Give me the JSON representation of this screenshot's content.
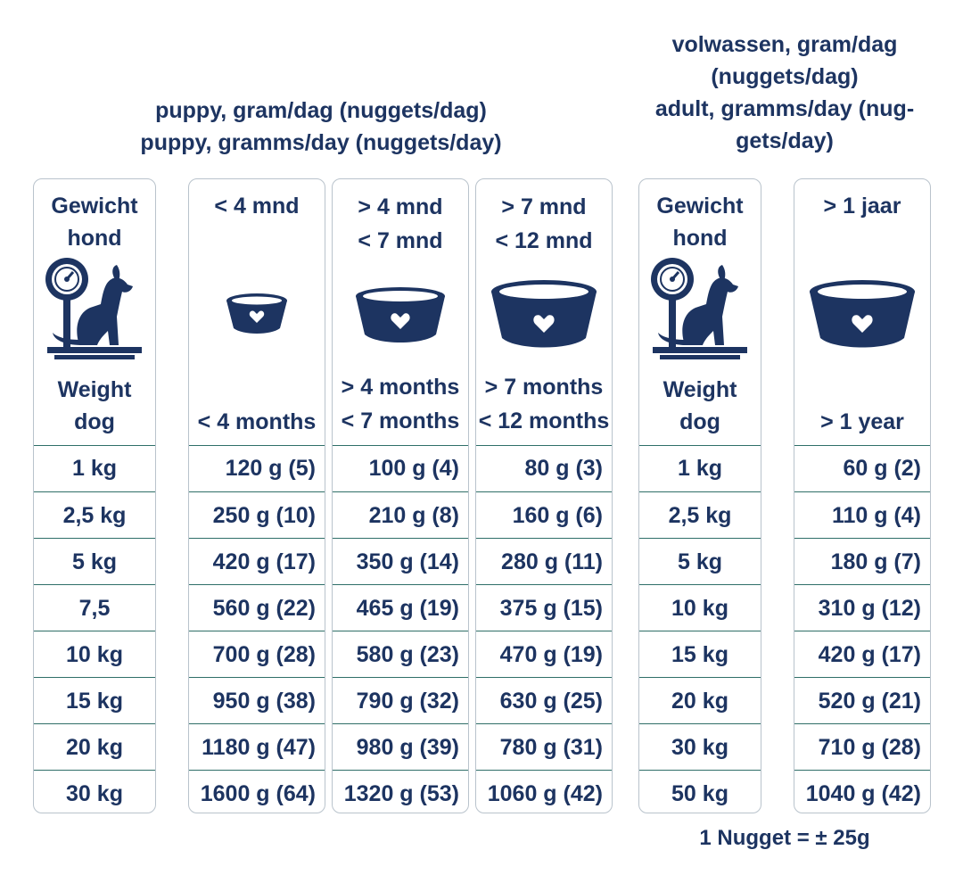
{
  "headings": {
    "puppy_line1": "puppy, gram/dag (nuggets/dag)",
    "puppy_line2": "puppy, gramms/day (nuggets/day)",
    "adult_line1": "volwassen, gram/dag",
    "adult_line2": "(nuggets/dag)",
    "adult_line3": "adult, gramms/day (nug-",
    "adult_line4": "gets/day)"
  },
  "puppy_weight": {
    "top1": "Gewicht",
    "top2": "hond",
    "bot1": "Weight",
    "bot2": "dog",
    "icon": "scale-dog-icon",
    "rows": [
      "1 kg",
      "2,5 kg",
      "5 kg",
      "7,5",
      "10 kg",
      "15 kg",
      "20 kg",
      "30 kg"
    ]
  },
  "puppy_lt4": {
    "top1": "< 4 mnd",
    "bot1": "< 4 months",
    "icon": "small-bowl-icon",
    "rows": [
      "120 g (5)",
      "250 g (10)",
      "420 g (17)",
      "560 g (22)",
      "700 g (28)",
      "950 g (38)",
      "1180 g (47)",
      "1600 g (64)"
    ]
  },
  "puppy_4to7": {
    "top1": "> 4 mnd",
    "top2": "< 7 mnd",
    "bot1": "> 4 months",
    "bot2": "< 7 months",
    "icon": "medium-bowl-icon",
    "rows": [
      "100 g (4)",
      "210 g (8)",
      "350 g (14)",
      "465 g (19)",
      "580 g (23)",
      "790 g (32)",
      "980 g (39)",
      "1320 g (53)"
    ]
  },
  "puppy_7to12": {
    "top1": "> 7 mnd",
    "top2": "< 12 mnd",
    "bot1": "> 7 months",
    "bot2": "< 12 months",
    "icon": "large-bowl-icon",
    "rows": [
      "80 g (3)",
      "160 g (6)",
      "280 g (11)",
      "375 g (15)",
      "470 g (19)",
      "630 g (25)",
      "780 g (31)",
      "1060 g (42)"
    ]
  },
  "adult_weight": {
    "top1": "Gewicht",
    "top2": "hond",
    "bot1": "Weight",
    "bot2": "dog",
    "icon": "scale-dog-icon",
    "rows": [
      "1 kg",
      "2,5 kg",
      "5 kg",
      "10 kg",
      "15 kg",
      "20 kg",
      "30 kg",
      "50 kg"
    ]
  },
  "adult_gt1": {
    "top1": "> 1 jaar",
    "bot1": "> 1 year",
    "icon": "large-bowl-icon",
    "rows": [
      "60 g (2)",
      "110 g (4)",
      "180 g (7)",
      "310 g (12)",
      "420 g (17)",
      "520 g (21)",
      "710 g (28)",
      "1040 g (42)"
    ]
  },
  "footer": "1 Nugget = ± 25g",
  "colors": {
    "navy": "#1d3461",
    "row_line": "#2f6f68",
    "border": "#b9c3cc"
  }
}
